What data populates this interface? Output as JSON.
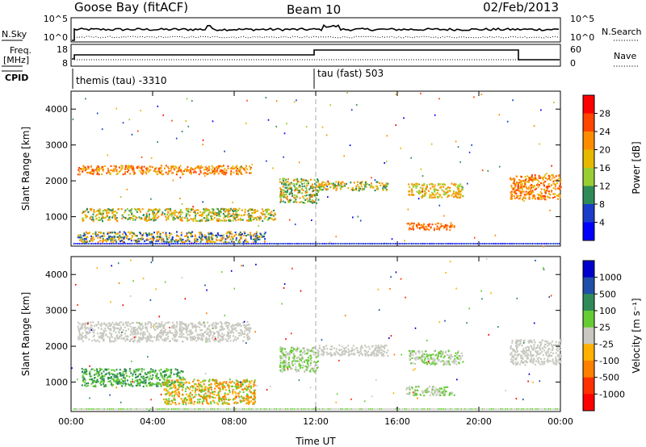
{
  "header": {
    "station": "Goose Bay (fitACF)",
    "beam": "Beam 10",
    "date": "02/Feb/2013"
  },
  "top_panel": {
    "left_label": "N.Sky",
    "right_label": "N.Search",
    "left_ticks": [
      "10^5",
      "10^0"
    ],
    "right_ticks": [
      "10^5",
      "10^0"
    ]
  },
  "freq_panel": {
    "left_label_1": "Freq.",
    "left_label_2": "[MHz]",
    "right_label": "Nave",
    "left_ticks": [
      "18",
      "8"
    ],
    "right_ticks": [
      "60",
      "0"
    ]
  },
  "cpid": {
    "label": "CPID",
    "segments": [
      {
        "text": "themis (tau) -3310"
      },
      {
        "text": "tau (fast) 503"
      }
    ]
  },
  "chart_data": [
    {
      "type": "heatmap",
      "name": "power",
      "ylabel": "Slant Range [km]",
      "xlabel": "Time UT",
      "y_ticks": [
        "4000",
        "3000",
        "2000",
        "1000"
      ],
      "x_ticks": [
        "00:00",
        "04:00",
        "08:00",
        "12:00",
        "16:00",
        "20:00",
        "00:00"
      ],
      "colorbar_label": "Power [dB]",
      "colorbar_ticks": [
        "28",
        "24",
        "20",
        "16",
        "12",
        "8",
        "4"
      ],
      "colorbar_colors": [
        "#ff0000",
        "#ff4500",
        "#ff8c00",
        "#e6b800",
        "#9acd32",
        "#2e8b57",
        "#1a3cc8",
        "#0000ff"
      ],
      "ylim": [
        180,
        4500
      ],
      "xlim_hours": [
        0,
        24
      ],
      "scatter_echoes": [
        {
          "t0": 0.3,
          "t1": 8.8,
          "r0": 2200,
          "r1": 2450,
          "levels": [
            1,
            2,
            3
          ]
        },
        {
          "t0": 0.5,
          "t1": 10.0,
          "r0": 900,
          "r1": 1250,
          "levels": [
            2,
            3,
            4,
            5
          ]
        },
        {
          "t0": 0.3,
          "t1": 9.5,
          "r0": 300,
          "r1": 600,
          "levels": [
            2,
            3,
            5,
            6
          ]
        },
        {
          "t0": 10.2,
          "t1": 12.1,
          "r0": 1400,
          "r1": 2100,
          "levels": [
            2,
            4,
            5
          ]
        },
        {
          "t0": 12.0,
          "t1": 15.5,
          "r0": 1750,
          "r1": 2000,
          "levels": [
            2,
            3,
            4,
            5
          ]
        },
        {
          "t0": 16.5,
          "t1": 19.2,
          "r0": 1550,
          "r1": 1950,
          "levels": [
            2,
            3,
            4
          ]
        },
        {
          "t0": 16.4,
          "t1": 18.8,
          "r0": 650,
          "r1": 850,
          "levels": [
            1,
            2
          ]
        },
        {
          "t0": 21.5,
          "t1": 24.0,
          "r0": 1500,
          "r1": 2200,
          "levels": [
            1,
            2,
            3
          ]
        }
      ]
    },
    {
      "type": "heatmap",
      "name": "velocity",
      "ylabel": "Slant Range [km]",
      "xlabel": "Time UT",
      "y_ticks": [
        "4000",
        "3000",
        "2000",
        "1000"
      ],
      "x_ticks": [
        "00:00",
        "04:00",
        "08:00",
        "12:00",
        "16:00",
        "20:00",
        "00:00"
      ],
      "colorbar_label": "Velocity [m s⁻¹]",
      "colorbar_ticks": [
        "1000",
        "500",
        "100",
        "25",
        "-25",
        "-100",
        "-500",
        "-1000"
      ],
      "colorbar_colors": [
        "#0000cc",
        "#1f4fa8",
        "#2e8b57",
        "#66cc33",
        "#c8c8c0",
        "#ffb000",
        "#ff7f00",
        "#ff3000",
        "#ff0000"
      ],
      "ylim": [
        180,
        4500
      ],
      "xlim_hours": [
        0,
        24
      ],
      "scatter_echoes": [
        {
          "t0": 0.3,
          "t1": 8.8,
          "r0": 2150,
          "r1": 2700,
          "levels": [
            4,
            4,
            4
          ]
        },
        {
          "t0": 0.5,
          "t1": 5.5,
          "r0": 900,
          "r1": 1400,
          "levels": [
            2,
            3
          ]
        },
        {
          "t0": 4.5,
          "t1": 9.0,
          "r0": 400,
          "r1": 1100,
          "levels": [
            5,
            6,
            3
          ]
        },
        {
          "t0": 10.2,
          "t1": 12.1,
          "r0": 1300,
          "r1": 2000,
          "levels": [
            4,
            3
          ]
        },
        {
          "t0": 12.0,
          "t1": 15.5,
          "r0": 1750,
          "r1": 2050,
          "levels": [
            4
          ]
        },
        {
          "t0": 16.5,
          "t1": 19.2,
          "r0": 1500,
          "r1": 1900,
          "levels": [
            4,
            3
          ]
        },
        {
          "t0": 16.4,
          "t1": 18.8,
          "r0": 650,
          "r1": 900,
          "levels": [
            3,
            4
          ]
        },
        {
          "t0": 21.5,
          "t1": 24.0,
          "r0": 1500,
          "r1": 2200,
          "levels": [
            4
          ]
        }
      ]
    }
  ]
}
